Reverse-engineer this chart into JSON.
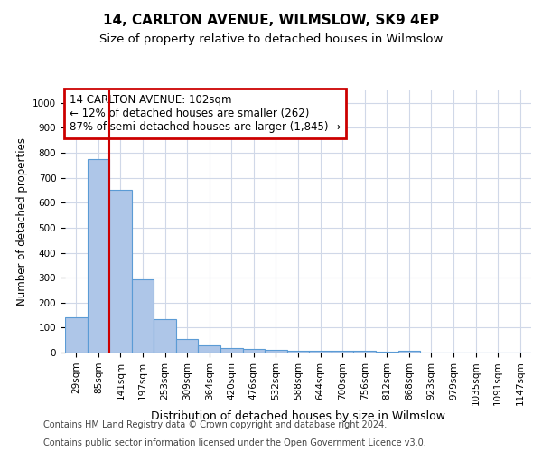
{
  "title": "14, CARLTON AVENUE, WILMSLOW, SK9 4EP",
  "subtitle": "Size of property relative to detached houses in Wilmslow",
  "xlabel": "Distribution of detached houses by size in Wilmslow",
  "ylabel": "Number of detached properties",
  "categories": [
    "29sqm",
    "85sqm",
    "141sqm",
    "197sqm",
    "253sqm",
    "309sqm",
    "364sqm",
    "420sqm",
    "476sqm",
    "532sqm",
    "588sqm",
    "644sqm",
    "700sqm",
    "756sqm",
    "812sqm",
    "868sqm",
    "923sqm",
    "979sqm",
    "1035sqm",
    "1091sqm",
    "1147sqm"
  ],
  "values": [
    140,
    775,
    650,
    295,
    135,
    55,
    28,
    18,
    15,
    10,
    8,
    8,
    8,
    8,
    5,
    8,
    0,
    0,
    0,
    0,
    0
  ],
  "bar_color": "#aec6e8",
  "bar_edge_color": "#5b9bd5",
  "bar_edge_width": 0.8,
  "vline_color": "#cc0000",
  "vline_linewidth": 1.5,
  "annotation_text": "14 CARLTON AVENUE: 102sqm\n← 12% of detached houses are smaller (262)\n87% of semi-detached houses are larger (1,845) →",
  "annotation_box_color": "#cc0000",
  "annotation_box_facecolor": "white",
  "annotation_fontsize": 8.5,
  "ylim": [
    0,
    1050
  ],
  "yticks": [
    0,
    100,
    200,
    300,
    400,
    500,
    600,
    700,
    800,
    900,
    1000
  ],
  "footer_line1": "Contains HM Land Registry data © Crown copyright and database right 2024.",
  "footer_line2": "Contains public sector information licensed under the Open Government Licence v3.0.",
  "title_fontsize": 11,
  "subtitle_fontsize": 9.5,
  "xlabel_fontsize": 9,
  "ylabel_fontsize": 8.5,
  "tick_fontsize": 7.5,
  "footer_fontsize": 7,
  "background_color": "#ffffff",
  "grid_color": "#d0d8e8"
}
